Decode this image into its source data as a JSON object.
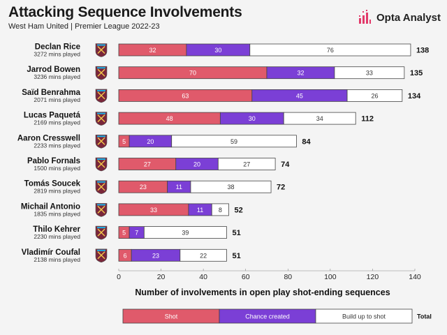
{
  "header": {
    "title": "Attacking Sequence Involvements",
    "subtitle": "West Ham United | Premier League 2022-23",
    "brand": "Opta Analyst"
  },
  "colors": {
    "shot": "#e05a6b",
    "chance": "#7b3fd6",
    "buildup": "#ffffff",
    "crest_bg": "#7a263a",
    "crest_accent": "#1bb1e7",
    "brand_accent": "#e23a6a"
  },
  "chart_data": {
    "type": "bar",
    "orientation": "horizontal",
    "stacked": true,
    "xlabel": "Number of involvements in open play shot-ending sequences",
    "xlim": [
      0,
      140
    ],
    "xticks": [
      0,
      20,
      40,
      60,
      80,
      100,
      120,
      140
    ],
    "categories": [
      "Declan Rice",
      "Jarrod Bowen",
      "Saïd Benrahma",
      "Lucas Paquetá",
      "Aaron Cresswell",
      "Pablo Fornals",
      "Tomás Soucek",
      "Michail Antonio",
      "Thilo Kehrer",
      "Vladimír Coufal"
    ],
    "minutes": [
      "3272 mins played",
      "3236 mins played",
      "2071 mins played",
      "2169 mins played",
      "2233 mins played",
      "1500 mins played",
      "2819 mins played",
      "1835 mins played",
      "2230 mins played",
      "2138 mins played"
    ],
    "series": [
      {
        "name": "Shot",
        "values": [
          32,
          70,
          63,
          48,
          5,
          27,
          23,
          33,
          5,
          6
        ]
      },
      {
        "name": "Chance created",
        "values": [
          30,
          32,
          45,
          30,
          20,
          20,
          11,
          11,
          7,
          23
        ]
      },
      {
        "name": "Build up to shot",
        "values": [
          76,
          33,
          26,
          34,
          59,
          27,
          38,
          8,
          39,
          22
        ]
      }
    ],
    "totals": [
      138,
      135,
      134,
      112,
      84,
      74,
      72,
      52,
      51,
      51
    ],
    "legend": {
      "items": [
        "Shot",
        "Chance created",
        "Build up to shot"
      ],
      "total_label": "Total",
      "position": "bottom"
    },
    "grid": false
  }
}
